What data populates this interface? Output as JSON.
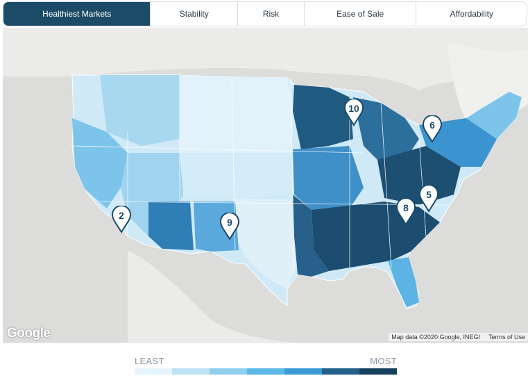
{
  "tabs": [
    {
      "label": "Healthiest Markets",
      "active": true
    },
    {
      "label": "Stability",
      "active": false
    },
    {
      "label": "Risk",
      "active": false
    },
    {
      "label": "Ease of Sale",
      "active": false
    },
    {
      "label": "Affordability",
      "active": false
    }
  ],
  "map": {
    "logo": "Google",
    "attribution": "Map data ©2020 Google, INEGI",
    "terms": "Terms of Use",
    "markers": [
      {
        "rank": "2",
        "location": "Southern California"
      },
      {
        "rank": "9",
        "location": "New Mexico"
      },
      {
        "rank": "10",
        "location": "Wisconsin"
      },
      {
        "rank": "6",
        "location": "Western New York"
      },
      {
        "rank": "5",
        "location": "Virginia"
      },
      {
        "rank": "8",
        "location": "North Carolina"
      }
    ]
  },
  "legend": {
    "low_label": "LEAST",
    "high_label": "MOST",
    "scale_colors": [
      "#e6f4fb",
      "#bfe3f5",
      "#8fd0ef",
      "#5db8e6",
      "#3a9bd6",
      "#23618a",
      "#173f5e"
    ]
  }
}
